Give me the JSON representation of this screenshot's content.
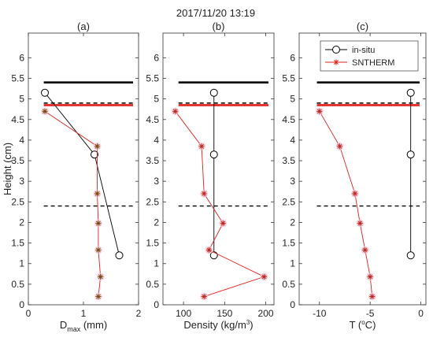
{
  "figure": {
    "suptitle": "2017/11/20 13:19"
  },
  "legend": {
    "entries": [
      {
        "label": "in-situ",
        "color": "#000000",
        "marker": "circle"
      },
      {
        "label": "SNTHERM",
        "color": "#e0201c",
        "marker": "asterisk"
      }
    ],
    "placement": "top-right of panel (c)"
  },
  "chart_data": [
    {
      "type": "line",
      "title": "(a)",
      "xlabel_main": "D",
      "xlabel_sub": "max",
      "xlabel_tail": " (mm)",
      "ylabel": "Height (cm)",
      "xlim": [
        0,
        2
      ],
      "ylim": [
        0,
        6.6
      ],
      "xticks": [
        0,
        1,
        2
      ],
      "yticks": [
        0,
        0.5,
        1,
        1.5,
        2,
        2.5,
        3,
        3.5,
        4,
        4.5,
        5,
        5.5,
        6
      ],
      "surface_y": 5.4,
      "dashed_y": [
        4.9,
        2.4
      ],
      "thick_red_y": 4.85,
      "series": [
        {
          "name": "in-situ",
          "x": [
            0.3,
            1.2,
            1.65
          ],
          "y": [
            5.15,
            3.65,
            1.2
          ]
        },
        {
          "name": "SNTHERM",
          "x": [
            0.3,
            1.25,
            1.25,
            1.27,
            1.27,
            1.31,
            1.27
          ],
          "y": [
            4.7,
            3.85,
            2.7,
            1.98,
            1.33,
            0.68,
            0.2
          ]
        }
      ]
    },
    {
      "type": "line",
      "title": "(b)",
      "xlabel_main": "Density (kg/m",
      "xlabel_sup": "3",
      "xlabel_tail": ")",
      "xlim": [
        75,
        210
      ],
      "ylim": [
        0,
        6.6
      ],
      "xticks": [
        100,
        150,
        200
      ],
      "yticks": [
        0,
        0.5,
        1,
        1.5,
        2,
        2.5,
        3,
        3.5,
        4,
        4.5,
        5,
        5.5,
        6
      ],
      "surface_y": 5.4,
      "dashed_y": [
        4.9,
        2.4
      ],
      "thick_red_y": 4.85,
      "series": [
        {
          "name": "in-situ",
          "x": [
            137,
            137,
            137
          ],
          "y": [
            5.15,
            3.65,
            1.2
          ]
        },
        {
          "name": "SNTHERM",
          "x": [
            90,
            122,
            125,
            148,
            131,
            198,
            125
          ],
          "y": [
            4.7,
            3.85,
            2.7,
            1.98,
            1.33,
            0.68,
            0.2
          ]
        }
      ]
    },
    {
      "type": "line",
      "title": "(c)",
      "xlabel_main": "T (",
      "xlabel_sup": "o",
      "xlabel_tail": "C)",
      "xlim": [
        -12,
        0.5
      ],
      "ylim": [
        0,
        6.6
      ],
      "xticks": [
        -10,
        -5,
        0
      ],
      "yticks": [
        0,
        0.5,
        1,
        1.5,
        2,
        2.5,
        3,
        3.5,
        4,
        4.5,
        5,
        5.5,
        6
      ],
      "surface_y": 5.4,
      "dashed_y": [
        4.9,
        2.4
      ],
      "thick_red_y": 4.85,
      "series": [
        {
          "name": "in-situ",
          "x": [
            -1,
            -1,
            -1
          ],
          "y": [
            5.15,
            3.65,
            1.2
          ]
        },
        {
          "name": "SNTHERM",
          "x": [
            -10,
            -8,
            -6.5,
            -6,
            -5.5,
            -5,
            -4.8
          ],
          "y": [
            4.7,
            3.85,
            2.7,
            1.98,
            1.33,
            0.68,
            0.2
          ]
        }
      ]
    }
  ]
}
